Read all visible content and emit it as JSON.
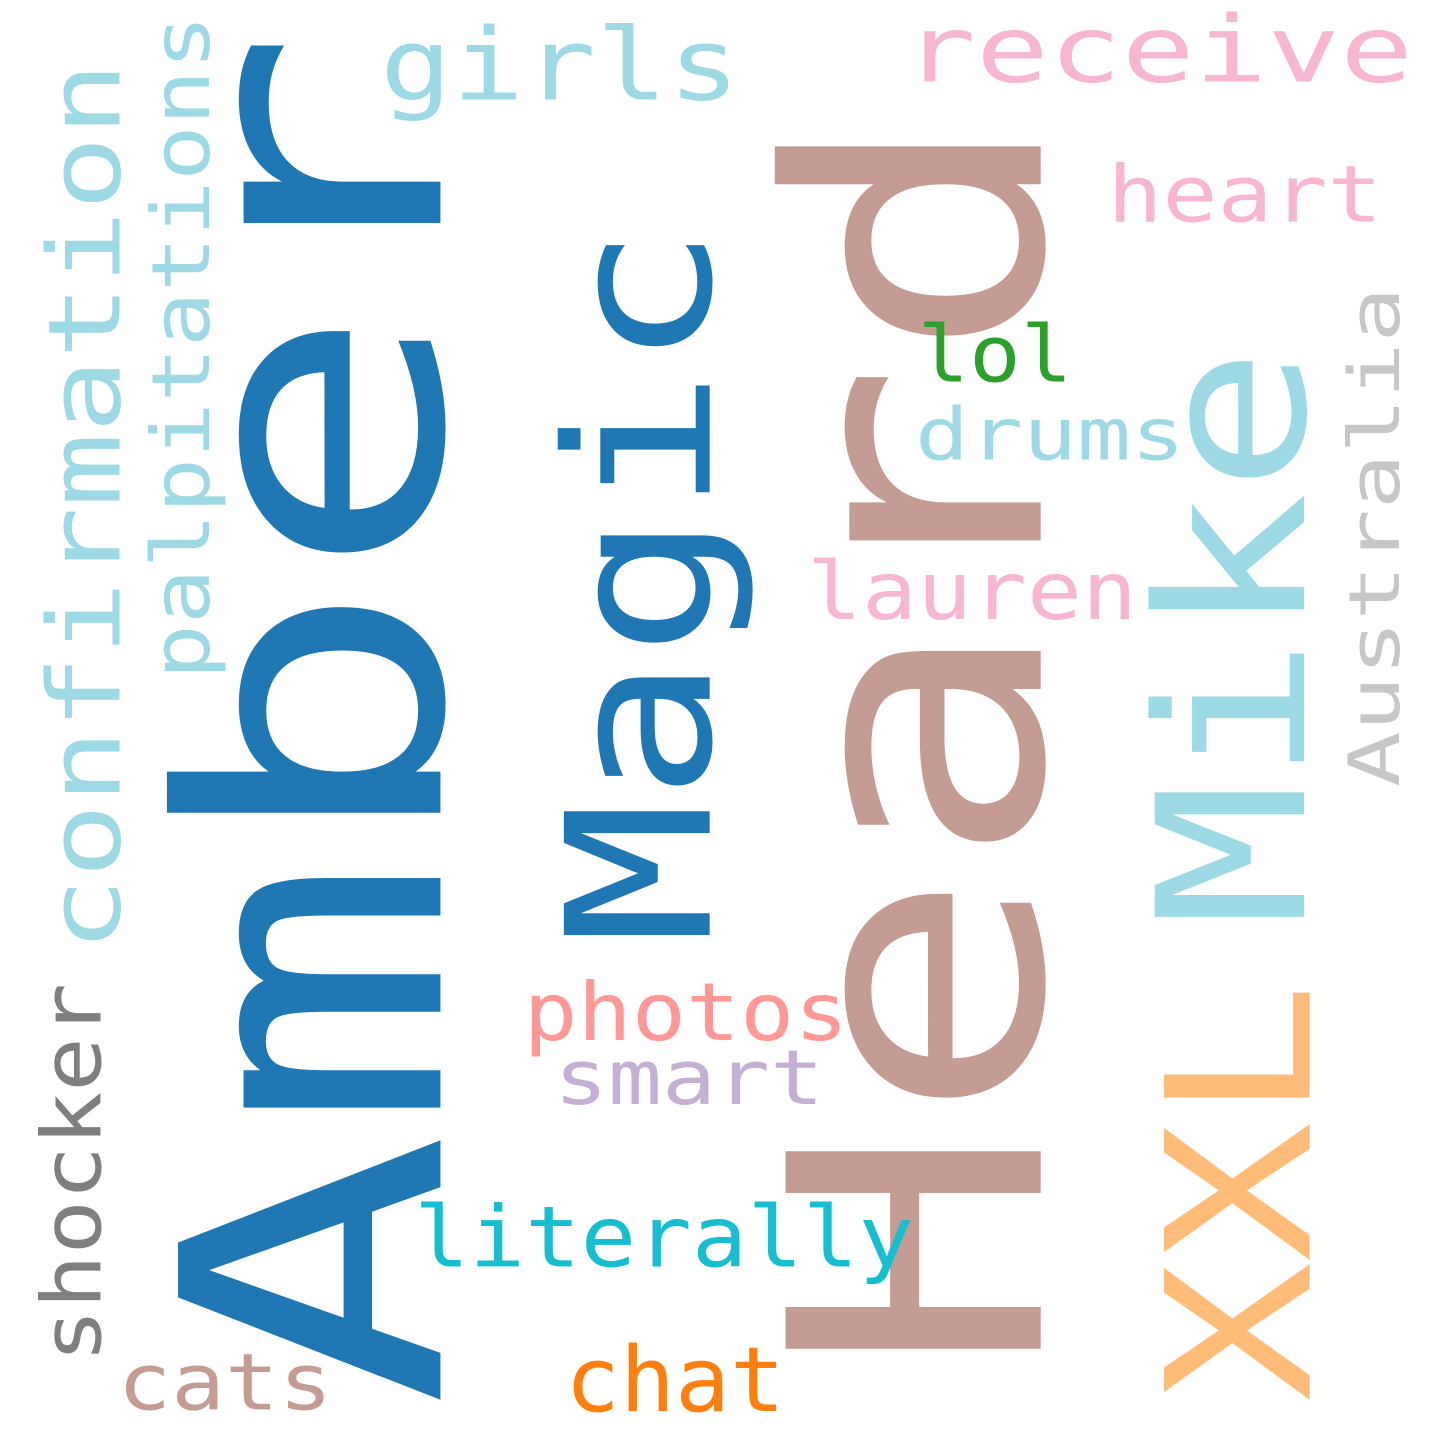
{
  "words": [
    {
      "id": "amber",
      "text": "Amber",
      "color": "#1f77b4"
    },
    {
      "id": "heard",
      "text": "Heard",
      "color": "#c49c94"
    },
    {
      "id": "magic",
      "text": "Magic",
      "color": "#1f77b4"
    },
    {
      "id": "mike",
      "text": "Mike",
      "color": "#9edae5"
    },
    {
      "id": "xxl",
      "text": "XXL",
      "color": "#ffbb78"
    },
    {
      "id": "confirmation",
      "text": "confirmation",
      "color": "#9edae5"
    },
    {
      "id": "palpitations",
      "text": "palpitations",
      "color": "#9edae5"
    },
    {
      "id": "girls",
      "text": "girls",
      "color": "#9edae5"
    },
    {
      "id": "receive",
      "text": "receive",
      "color": "#f7b6d2"
    },
    {
      "id": "heart",
      "text": "heart",
      "color": "#f7b6d2"
    },
    {
      "id": "australia",
      "text": "Australia",
      "color": "#c7c7c7"
    },
    {
      "id": "lol",
      "text": "lol",
      "color": "#2ca02c"
    },
    {
      "id": "drums",
      "text": "drums",
      "color": "#9edae5"
    },
    {
      "id": "lauren",
      "text": "lauren",
      "color": "#f7b6d2"
    },
    {
      "id": "photos",
      "text": "photos",
      "color": "#ff9896"
    },
    {
      "id": "smart",
      "text": "smart",
      "color": "#c5b0d5"
    },
    {
      "id": "literally",
      "text": "literally",
      "color": "#17becf"
    },
    {
      "id": "shocker",
      "text": "shocker",
      "color": "#7f7f7f"
    },
    {
      "id": "cats",
      "text": "cats",
      "color": "#c49c94"
    },
    {
      "id": "chat",
      "text": "chat",
      "color": "#ff7f0e"
    }
  ]
}
